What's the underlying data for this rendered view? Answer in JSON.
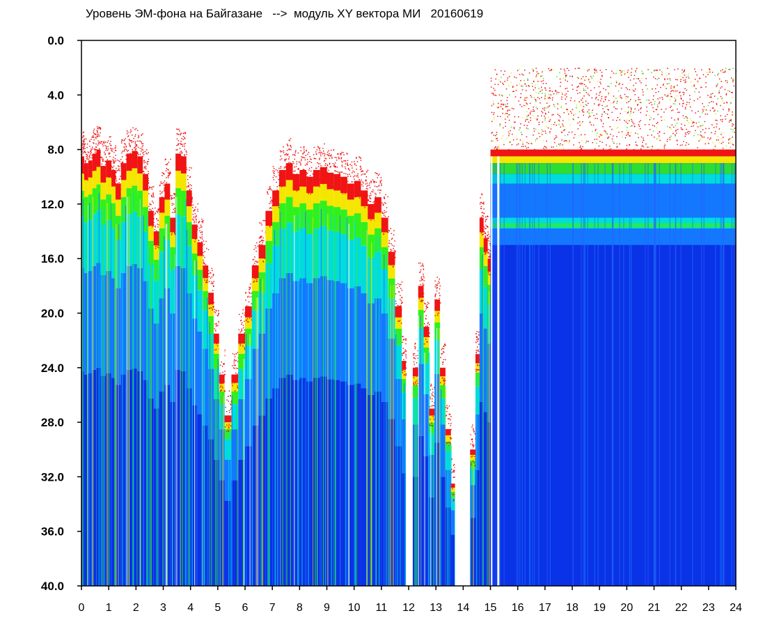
{
  "chart_data": {
    "type": "heatmap",
    "title": "Уровень ЭМ-фона на Байгазане   -->  модуль XY вектора МИ   20160619",
    "xlabel": "",
    "ylabel": "",
    "xlim": [
      0,
      24
    ],
    "ylim": [
      0,
      40
    ],
    "y_inverted": true,
    "x_ticks": [
      "0",
      "1",
      "2",
      "3",
      "4",
      "5",
      "6",
      "7",
      "8",
      "9",
      "10",
      "11",
      "12",
      "13",
      "14",
      "15",
      "16",
      "17",
      "18",
      "19",
      "20",
      "21",
      "22",
      "23",
      "24"
    ],
    "y_ticks": [
      "0.0",
      "4.0",
      "8.0",
      "12.0",
      "16.0",
      "20.0",
      "24.0",
      "28.0",
      "32.0",
      "36.0",
      "40.0"
    ],
    "colors": {
      "background": "#ffffff",
      "low": "#0a32e6",
      "mid_low": "#1478ff",
      "mid": "#00dcdc",
      "mid_high": "#32f01e",
      "high": "#f5e600",
      "top": "#f01414"
    },
    "columns": [
      {
        "x0": 0.0,
        "x1": 0.1,
        "top_y": 8.5
      },
      {
        "x0": 0.1,
        "x1": 0.25,
        "top_y": 9.0
      },
      {
        "x0": 0.25,
        "x1": 0.4,
        "top_y": 8.8
      },
      {
        "x0": 0.4,
        "x1": 0.55,
        "top_y": 8.3
      },
      {
        "x0": 0.55,
        "x1": 0.7,
        "top_y": 8.0
      },
      {
        "x0": 0.7,
        "x1": 0.9,
        "top_y": 9.2
      },
      {
        "x0": 0.9,
        "x1": 1.1,
        "top_y": 8.8
      },
      {
        "x0": 1.1,
        "x1": 1.25,
        "top_y": 9.5
      },
      {
        "x0": 1.25,
        "x1": 1.45,
        "top_y": 10.5
      },
      {
        "x0": 1.45,
        "x1": 1.65,
        "top_y": 9.0
      },
      {
        "x0": 1.65,
        "x1": 1.85,
        "top_y": 8.3
      },
      {
        "x0": 1.85,
        "x1": 2.05,
        "top_y": 8.1
      },
      {
        "x0": 2.05,
        "x1": 2.25,
        "top_y": 8.5
      },
      {
        "x0": 2.25,
        "x1": 2.45,
        "top_y": 9.8
      },
      {
        "x0": 2.45,
        "x1": 2.65,
        "top_y": 12.5
      },
      {
        "x0": 2.65,
        "x1": 2.85,
        "top_y": 14.0
      },
      {
        "x0": 2.85,
        "x1": 3.05,
        "top_y": 11.5
      },
      {
        "x0": 3.05,
        "x1": 3.25,
        "top_y": 10.5
      },
      {
        "x0": 3.25,
        "x1": 3.45,
        "top_y": 13.0
      },
      {
        "x0": 3.45,
        "x1": 3.65,
        "top_y": 8.3
      },
      {
        "x0": 3.65,
        "x1": 3.85,
        "top_y": 8.5
      },
      {
        "x0": 3.85,
        "x1": 4.05,
        "top_y": 11.0
      },
      {
        "x0": 4.05,
        "x1": 4.25,
        "top_y": 13.5
      },
      {
        "x0": 4.25,
        "x1": 4.45,
        "top_y": 14.8
      },
      {
        "x0": 4.45,
        "x1": 4.65,
        "top_y": 16.5
      },
      {
        "x0": 4.65,
        "x1": 4.85,
        "top_y": 18.5
      },
      {
        "x0": 4.85,
        "x1": 5.05,
        "top_y": 21.5
      },
      {
        "x0": 5.05,
        "x1": 5.25,
        "top_y": 24.5
      },
      {
        "x0": 5.25,
        "x1": 5.5,
        "top_y": 27.5
      },
      {
        "x0": 5.5,
        "x1": 5.75,
        "top_y": 24.5
      },
      {
        "x0": 5.75,
        "x1": 6.0,
        "top_y": 21.5
      },
      {
        "x0": 6.0,
        "x1": 6.25,
        "top_y": 19.5
      },
      {
        "x0": 6.25,
        "x1": 6.5,
        "top_y": 16.5
      },
      {
        "x0": 6.5,
        "x1": 6.75,
        "top_y": 15.0
      },
      {
        "x0": 6.75,
        "x1": 7.0,
        "top_y": 12.5
      },
      {
        "x0": 7.0,
        "x1": 7.25,
        "top_y": 11.0
      },
      {
        "x0": 7.25,
        "x1": 7.5,
        "top_y": 9.5
      },
      {
        "x0": 7.5,
        "x1": 7.75,
        "top_y": 9.0
      },
      {
        "x0": 7.75,
        "x1": 8.0,
        "top_y": 9.8
      },
      {
        "x0": 8.0,
        "x1": 8.25,
        "top_y": 9.5
      },
      {
        "x0": 8.25,
        "x1": 8.5,
        "top_y": 10.0
      },
      {
        "x0": 8.5,
        "x1": 8.75,
        "top_y": 9.5
      },
      {
        "x0": 8.75,
        "x1": 9.0,
        "top_y": 9.3
      },
      {
        "x0": 9.0,
        "x1": 9.25,
        "top_y": 9.7
      },
      {
        "x0": 9.25,
        "x1": 9.5,
        "top_y": 9.8
      },
      {
        "x0": 9.5,
        "x1": 9.75,
        "top_y": 10.0
      },
      {
        "x0": 9.75,
        "x1": 10.0,
        "top_y": 10.5
      },
      {
        "x0": 10.0,
        "x1": 10.25,
        "top_y": 10.3
      },
      {
        "x0": 10.25,
        "x1": 10.5,
        "top_y": 11.0
      },
      {
        "x0": 10.5,
        "x1": 10.75,
        "top_y": 12.0
      },
      {
        "x0": 10.75,
        "x1": 11.0,
        "top_y": 11.5
      },
      {
        "x0": 11.0,
        "x1": 11.25,
        "top_y": 13.0
      },
      {
        "x0": 11.25,
        "x1": 11.5,
        "top_y": 15.5
      },
      {
        "x0": 11.5,
        "x1": 11.75,
        "top_y": 19.5
      },
      {
        "x0": 11.75,
        "x1": 11.9,
        "top_y": 23.5
      },
      {
        "x0": 11.9,
        "x1": 12.15,
        "top_y": 40.0
      },
      {
        "x0": 12.15,
        "x1": 12.35,
        "top_y": 24.0
      },
      {
        "x0": 12.35,
        "x1": 12.55,
        "top_y": 18.0
      },
      {
        "x0": 12.55,
        "x1": 12.75,
        "top_y": 21.0
      },
      {
        "x0": 12.75,
        "x1": 12.95,
        "top_y": 27.0
      },
      {
        "x0": 12.95,
        "x1": 13.15,
        "top_y": 19.0
      },
      {
        "x0": 13.15,
        "x1": 13.35,
        "top_y": 24.0
      },
      {
        "x0": 13.35,
        "x1": 13.55,
        "top_y": 28.5
      },
      {
        "x0": 13.55,
        "x1": 13.75,
        "top_y": 32.5
      },
      {
        "x0": 13.75,
        "x1": 14.25,
        "top_y": 40.0
      },
      {
        "x0": 14.25,
        "x1": 14.45,
        "top_y": 30.0
      },
      {
        "x0": 14.45,
        "x1": 14.6,
        "top_y": 23.0
      },
      {
        "x0": 14.6,
        "x1": 14.75,
        "top_y": 13.0
      },
      {
        "x0": 14.75,
        "x1": 14.9,
        "top_y": 14.5
      },
      {
        "x0": 14.9,
        "x1": 15.0,
        "top_y": 16.0
      },
      {
        "x0": 15.0,
        "x1": 24.0,
        "top_y": 2.0
      }
    ],
    "gaps": [
      {
        "x0": 5.05,
        "x1": 5.25,
        "y0": 0,
        "y1": 23.5
      },
      {
        "x0": 13.7,
        "x1": 14.25,
        "y0": 0,
        "y1": 40
      }
    ]
  }
}
